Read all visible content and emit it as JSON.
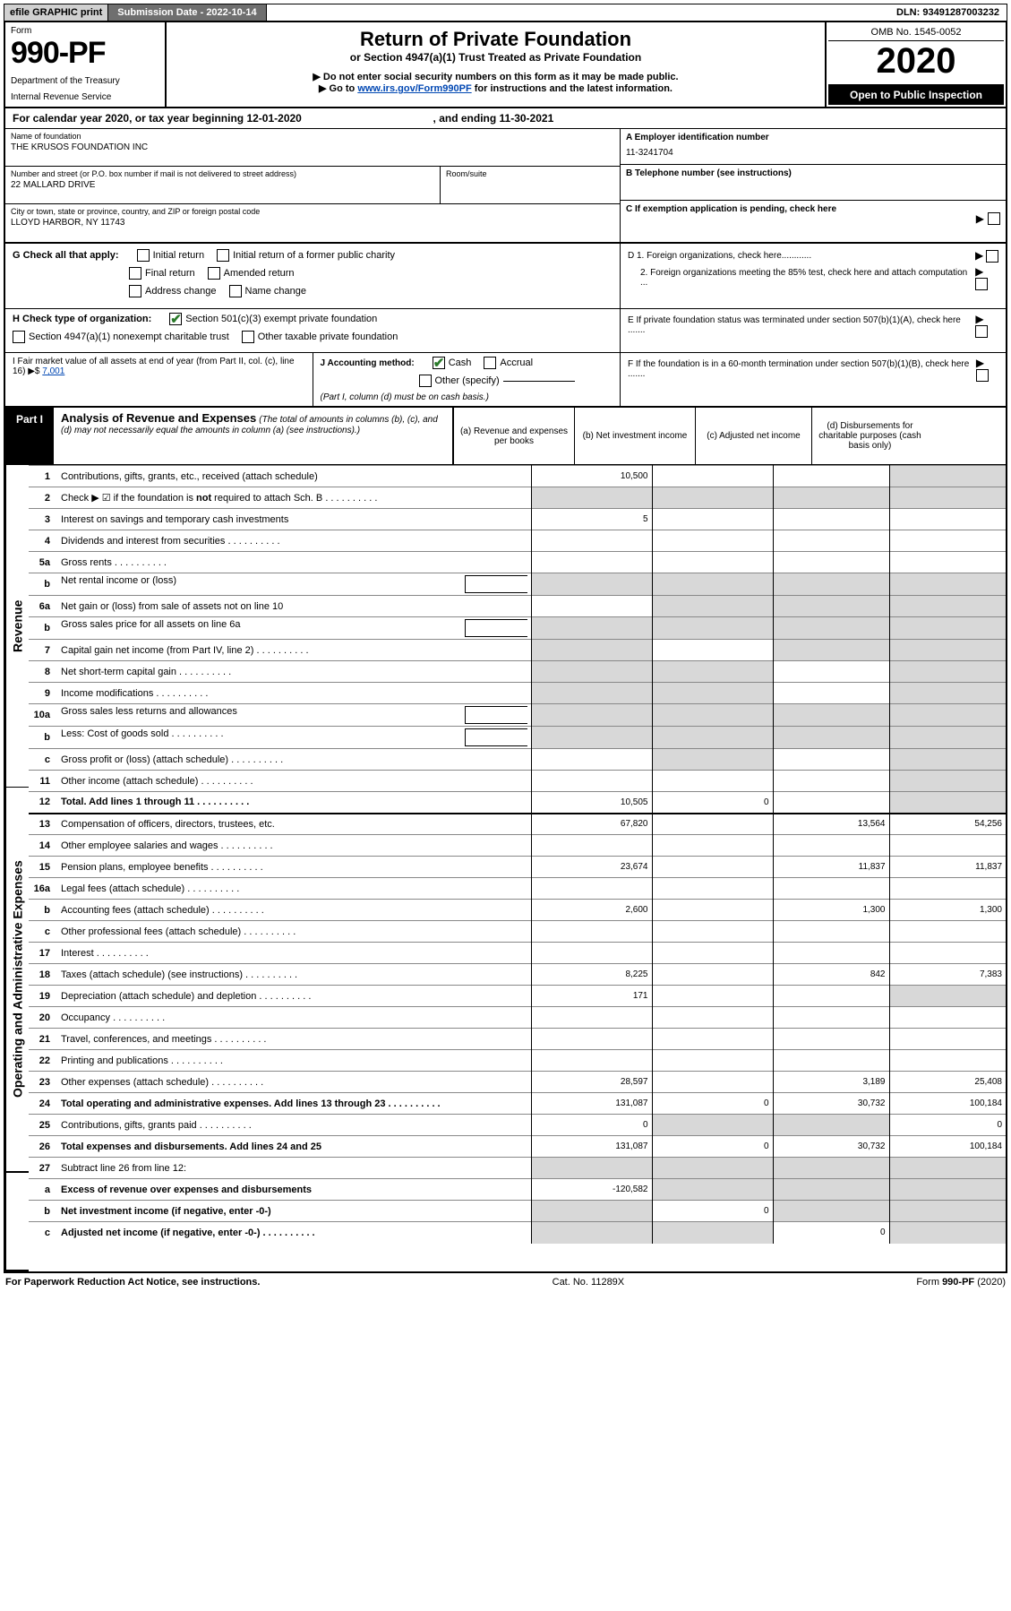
{
  "topbar": {
    "efile": "efile GRAPHIC print",
    "submission_label": "Submission Date - 2022-10-14",
    "dln": "DLN: 93491287003232"
  },
  "header": {
    "form_word": "Form",
    "form_number": "990-PF",
    "dept1": "Department of the Treasury",
    "dept2": "Internal Revenue Service",
    "title": "Return of Private Foundation",
    "subtitle": "or Section 4947(a)(1) Trust Treated as Private Foundation",
    "note1": "▶ Do not enter social security numbers on this form as it may be made public.",
    "note2_pre": "▶ Go to ",
    "note2_link": "www.irs.gov/Form990PF",
    "note2_post": " for instructions and the latest information.",
    "omb": "OMB No. 1545-0052",
    "year": "2020",
    "open": "Open to Public Inspection"
  },
  "calyear": {
    "text_pre": "For calendar year 2020, or tax year beginning ",
    "begin": "12-01-2020",
    "text_mid": " , and ending ",
    "end": "11-30-2021"
  },
  "entity": {
    "name_label": "Name of foundation",
    "name": "THE KRUSOS FOUNDATION INC",
    "street_label": "Number and street (or P.O. box number if mail is not delivered to street address)",
    "street": "22 MALLARD DRIVE",
    "suite_label": "Room/suite",
    "city_label": "City or town, state or province, country, and ZIP or foreign postal code",
    "city": "LLOYD HARBOR, NY  11743",
    "a_label": "A Employer identification number",
    "ein": "11-3241704",
    "b_label": "B Telephone number (see instructions)",
    "c_label": "C If exemption application is pending, check here",
    "d1": "D 1. Foreign organizations, check here............",
    "d2": "2. Foreign organizations meeting the 85% test, check here and attach computation ...",
    "e": "E   If private foundation status was terminated under section 507(b)(1)(A), check here .......",
    "f": "F   If the foundation is in a 60-month termination under section 507(b)(1)(B), check here ......."
  },
  "g": {
    "label": "G Check all that apply:",
    "items": [
      "Initial return",
      "Initial return of a former public charity",
      "Final return",
      "Amended return",
      "Address change",
      "Name change"
    ]
  },
  "h": {
    "label": "H Check type of organization:",
    "opt1": "Section 501(c)(3) exempt private foundation",
    "opt2": "Section 4947(a)(1) nonexempt charitable trust",
    "opt3": "Other taxable private foundation"
  },
  "i": {
    "label": "I Fair market value of all assets at end of year (from Part II, col. (c), line 16)",
    "arrow": "▶$",
    "value": "7,001"
  },
  "j": {
    "label": "J Accounting method:",
    "cash": "Cash",
    "accrual": "Accrual",
    "other": "Other (specify)",
    "note": "(Part I, column (d) must be on cash basis.)"
  },
  "part1": {
    "tab": "Part I",
    "title": "Analysis of Revenue and Expenses",
    "title_note": "(The total of amounts in columns (b), (c), and (d) may not necessarily equal the amounts in column (a) (see instructions).)",
    "col_a": "(a)  Revenue and expenses per books",
    "col_b": "(b)  Net investment income",
    "col_c": "(c)  Adjusted net income",
    "col_d": "(d)  Disbursements for charitable purposes (cash basis only)"
  },
  "sides": {
    "revenue": "Revenue",
    "expenses": "Operating and Administrative Expenses"
  },
  "rows": [
    {
      "n": "1",
      "d": "Contributions, gifts, grants, etc., received (attach schedule)",
      "a": "10,500",
      "ds": true
    },
    {
      "n": "2",
      "d": "Check ▶ ☑ if the foundation is <b>not</b> required to attach Sch. B",
      "dots": true,
      "allshade": true
    },
    {
      "n": "3",
      "d": "Interest on savings and temporary cash investments",
      "a": "5"
    },
    {
      "n": "4",
      "d": "Dividends and interest from securities",
      "dots": true
    },
    {
      "n": "5a",
      "d": "Gross rents",
      "dots": true
    },
    {
      "n": "b",
      "d": "Net rental income or (loss)",
      "mini": true,
      "allshade": true
    },
    {
      "n": "6a",
      "d": "Net gain or (loss) from sale of assets not on line 10",
      "bcd_shade": true
    },
    {
      "n": "b",
      "d": "Gross sales price for all assets on line 6a",
      "mini": true,
      "allshade": true
    },
    {
      "n": "7",
      "d": "Capital gain net income (from Part IV, line 2)",
      "dots": true,
      "a_shade": true,
      "cd_shade": true
    },
    {
      "n": "8",
      "d": "Net short-term capital gain",
      "dots": true,
      "ab_shade": true,
      "d_shade": true
    },
    {
      "n": "9",
      "d": "Income modifications",
      "dots": true,
      "ab_shade": true,
      "d_shade": true
    },
    {
      "n": "10a",
      "d": "Gross sales less returns and allowances",
      "mini": true,
      "allshade": true
    },
    {
      "n": "b",
      "d": "Less: Cost of goods sold",
      "dots": true,
      "mini": true,
      "allshade": true
    },
    {
      "n": "c",
      "d": "Gross profit or (loss) (attach schedule)",
      "dots": true,
      "b_shade": true,
      "d_shade": true
    },
    {
      "n": "11",
      "d": "Other income (attach schedule)",
      "dots": true,
      "d_shade": true
    },
    {
      "n": "12",
      "d": "<b>Total.</b> Add lines 1 through 11",
      "dots": true,
      "a": "10,505",
      "b": "0",
      "d_shade": true,
      "bold": true
    },
    {
      "n": "13",
      "d": "Compensation of officers, directors, trustees, etc.",
      "a": "67,820",
      "c": "13,564",
      "dd": "54,256",
      "section": "exp"
    },
    {
      "n": "14",
      "d": "Other employee salaries and wages",
      "dots": true
    },
    {
      "n": "15",
      "d": "Pension plans, employee benefits",
      "dots": true,
      "a": "23,674",
      "c": "11,837",
      "dd": "11,837"
    },
    {
      "n": "16a",
      "d": "Legal fees (attach schedule)",
      "dots": true
    },
    {
      "n": "b",
      "d": "Accounting fees (attach schedule)",
      "dots": true,
      "a": "2,600",
      "c": "1,300",
      "dd": "1,300"
    },
    {
      "n": "c",
      "d": "Other professional fees (attach schedule)",
      "dots": true
    },
    {
      "n": "17",
      "d": "Interest",
      "dots": true
    },
    {
      "n": "18",
      "d": "Taxes (attach schedule) (see instructions)",
      "dots": true,
      "a": "8,225",
      "c": "842",
      "dd": "7,383"
    },
    {
      "n": "19",
      "d": "Depreciation (attach schedule) and depletion",
      "dots": true,
      "a": "171",
      "d_shade": true
    },
    {
      "n": "20",
      "d": "Occupancy",
      "dots": true
    },
    {
      "n": "21",
      "d": "Travel, conferences, and meetings",
      "dots": true
    },
    {
      "n": "22",
      "d": "Printing and publications",
      "dots": true
    },
    {
      "n": "23",
      "d": "Other expenses (attach schedule)",
      "dots": true,
      "a": "28,597",
      "c": "3,189",
      "dd": "25,408"
    },
    {
      "n": "24",
      "d": "<b>Total operating and administrative expenses.</b> Add lines 13 through 23",
      "dots": true,
      "a": "131,087",
      "b": "0",
      "c": "30,732",
      "dd": "100,184",
      "bold": true
    },
    {
      "n": "25",
      "d": "Contributions, gifts, grants paid",
      "dots": true,
      "a": "0",
      "dd": "0",
      "bc_shade": true
    },
    {
      "n": "26",
      "d": "<b>Total expenses and disbursements.</b> Add lines 24 and 25",
      "a": "131,087",
      "b": "0",
      "c": "30,732",
      "dd": "100,184",
      "bold": true
    },
    {
      "n": "27",
      "d": "Subtract line 26 from line 12:",
      "allshade": true,
      "section": "final"
    },
    {
      "n": "a",
      "d": "<b>Excess of revenue over expenses and disbursements</b>",
      "a": "-120,582",
      "bcd_shade": true,
      "bold": true
    },
    {
      "n": "b",
      "d": "<b>Net investment income</b> (if negative, enter -0-)",
      "b": "0",
      "a_shade": true,
      "cd_shade": true,
      "bold": true
    },
    {
      "n": "c",
      "d": "<b>Adjusted net income</b> (if negative, enter -0-)",
      "dots": true,
      "c": "0",
      "ab_shade": true,
      "d_shade": true,
      "bold": true
    }
  ],
  "footer": {
    "left": "For Paperwork Reduction Act Notice, see instructions.",
    "mid": "Cat. No. 11289X",
    "right": "Form 990-PF (2020)"
  },
  "colors": {
    "checkgreen": "#2a7a2a",
    "shade": "#d8d8d8",
    "link": "#0047b3",
    "topdark": "#6f6f6f",
    "toplight": "#d0d0d0"
  }
}
